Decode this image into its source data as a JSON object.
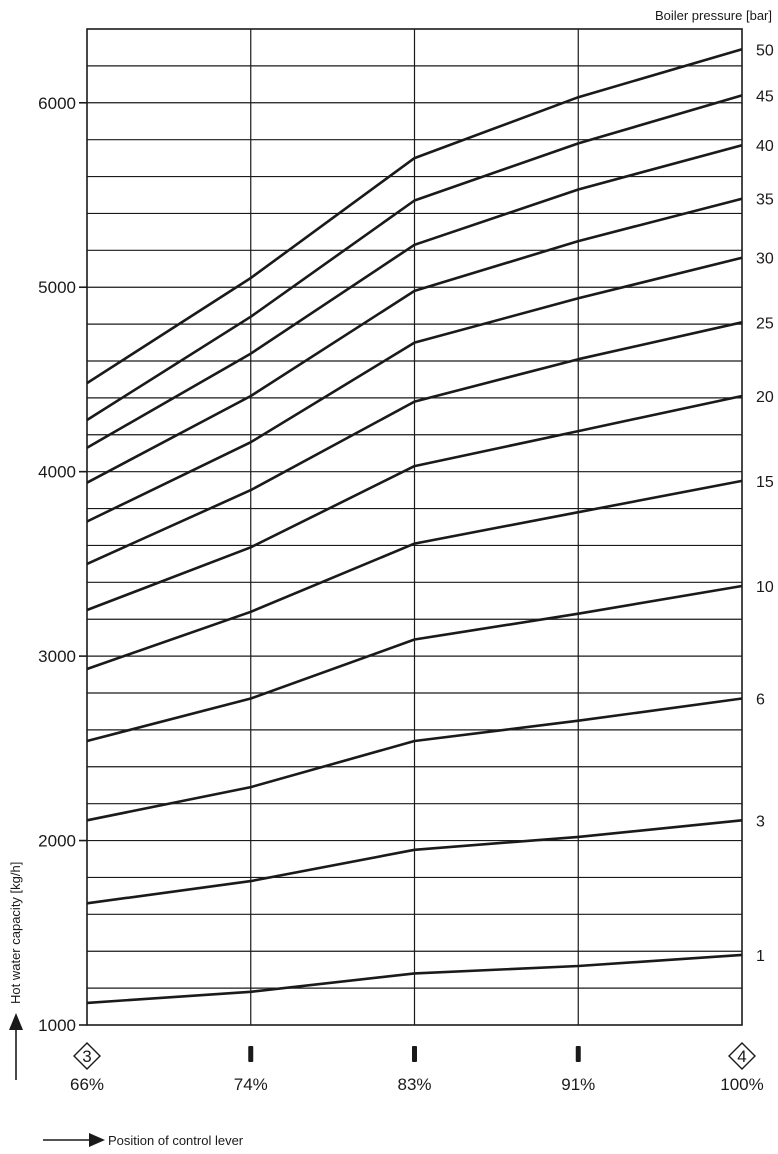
{
  "chart_data": {
    "type": "line",
    "title": "",
    "xlabel": "Position of control lever",
    "ylabel": "Hot water capacity [kg/h]",
    "legend_title": "Boiler pressure [bar]",
    "categories": [
      "66%",
      "74%",
      "83%",
      "91%",
      "100%"
    ],
    "x_markers": [
      "3",
      "",
      "",
      "",
      "4"
    ],
    "y_ticks": [
      1000,
      2000,
      3000,
      4000,
      5000,
      6000
    ],
    "ylim": [
      1000,
      6400
    ],
    "grid": true,
    "series": [
      {
        "name": "1",
        "values": [
          1120,
          1180,
          1280,
          1320,
          1380
        ]
      },
      {
        "name": "3",
        "values": [
          1660,
          1780,
          1950,
          2020,
          2110
        ]
      },
      {
        "name": "6",
        "values": [
          2110,
          2290,
          2540,
          2650,
          2770
        ]
      },
      {
        "name": "10",
        "values": [
          2540,
          2770,
          3090,
          3230,
          3380
        ]
      },
      {
        "name": "15",
        "values": [
          2930,
          3240,
          3610,
          3780,
          3950
        ]
      },
      {
        "name": "20",
        "values": [
          3250,
          3590,
          4030,
          4220,
          4410
        ]
      },
      {
        "name": "25",
        "values": [
          3500,
          3900,
          4380,
          4610,
          4810
        ]
      },
      {
        "name": "30",
        "values": [
          3730,
          4160,
          4700,
          4940,
          5160
        ]
      },
      {
        "name": "35",
        "values": [
          3940,
          4410,
          4980,
          5250,
          5480
        ]
      },
      {
        "name": "40",
        "values": [
          4130,
          4640,
          5230,
          5530,
          5770
        ]
      },
      {
        "name": "45",
        "values": [
          4280,
          4840,
          5470,
          5780,
          6040
        ]
      },
      {
        "name": "50",
        "values": [
          4480,
          5050,
          5700,
          6030,
          6290
        ]
      }
    ]
  }
}
